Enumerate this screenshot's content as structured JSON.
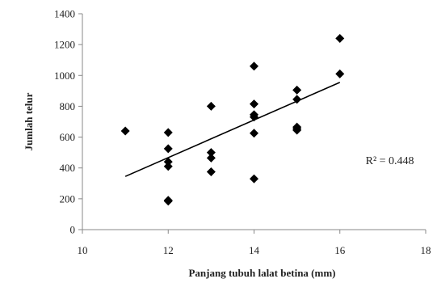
{
  "chart_data": {
    "type": "scatter",
    "title": "",
    "xlabel": "Panjang tubuh lalat betina (mm)",
    "ylabel": "Jumlah telur",
    "xlim": [
      10,
      18
    ],
    "ylim": [
      0,
      1400
    ],
    "x_ticks": [
      10,
      12,
      14,
      16,
      18
    ],
    "y_ticks": [
      0,
      200,
      400,
      600,
      800,
      1000,
      1200,
      1400
    ],
    "grid": false,
    "legend": "none",
    "marker": "diamond",
    "marker_color": "#000000",
    "points": [
      {
        "x": 11,
        "y": 640
      },
      {
        "x": 12,
        "y": 630
      },
      {
        "x": 12,
        "y": 525
      },
      {
        "x": 12,
        "y": 440
      },
      {
        "x": 12,
        "y": 410
      },
      {
        "x": 12,
        "y": 190
      },
      {
        "x": 12,
        "y": 185
      },
      {
        "x": 13,
        "y": 800
      },
      {
        "x": 13,
        "y": 500
      },
      {
        "x": 13,
        "y": 465
      },
      {
        "x": 13,
        "y": 375
      },
      {
        "x": 14,
        "y": 1060
      },
      {
        "x": 14,
        "y": 815
      },
      {
        "x": 14,
        "y": 745
      },
      {
        "x": 14,
        "y": 730
      },
      {
        "x": 14,
        "y": 625
      },
      {
        "x": 14,
        "y": 330
      },
      {
        "x": 15,
        "y": 905
      },
      {
        "x": 15,
        "y": 845
      },
      {
        "x": 15,
        "y": 665
      },
      {
        "x": 15,
        "y": 655
      },
      {
        "x": 15,
        "y": 645
      },
      {
        "x": 16,
        "y": 1240
      },
      {
        "x": 16,
        "y": 1010
      }
    ],
    "trendline": {
      "x": [
        11,
        16
      ],
      "y": [
        345,
        955
      ],
      "color": "#000000"
    },
    "annotation": {
      "text": "R² = 0.448",
      "x": 16.6,
      "y": 450
    }
  }
}
